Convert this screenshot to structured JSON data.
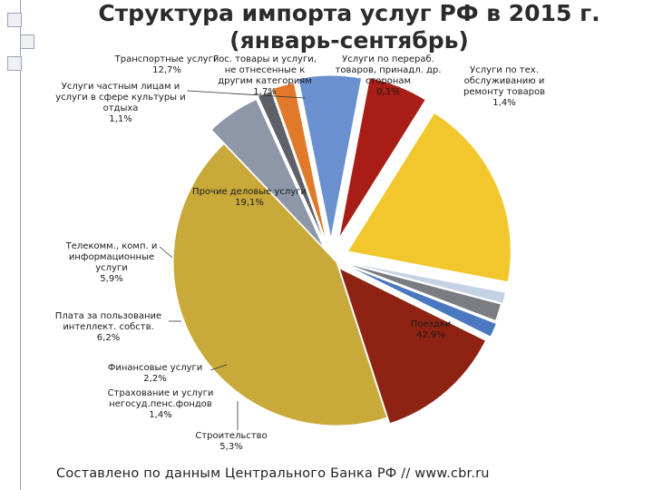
{
  "title": {
    "line1": "Структура импорта услуг РФ  в 2015 г.",
    "line2": "(январь-сентябрь)"
  },
  "source": "Составлено по данным Центрального Банка РФ // www.cbr.ru",
  "chart_data": {
    "type": "pie",
    "title": "Структура импорта услуг РФ  в 2015 г. (январь-сентябрь)",
    "unit": "%",
    "slices": [
      {
        "label": "Поездки",
        "value": 42.9,
        "value_label": "42,9%",
        "color": "#c8a93a"
      },
      {
        "label": "Строительство",
        "value": 5.3,
        "value_label": "5,3%",
        "color": "#8d97a8"
      },
      {
        "label": "Страхование и услуги негосуд.пенс.фондов",
        "value": 1.4,
        "value_label": "1,4%",
        "color": "#5e6068"
      },
      {
        "label": "Финансовые услуги",
        "value": 2.2,
        "value_label": "2,2%",
        "color": "#e07a2a"
      },
      {
        "label": "Плата за пользование интеллект. собств.",
        "value": 6.2,
        "value_label": "6,2%",
        "color": "#6a90d0"
      },
      {
        "label": "Телекомм., комп. и информационные услуги",
        "value": 5.9,
        "value_label": "5,9%",
        "color": "#a81e16"
      },
      {
        "label": "Прочие деловые услуги",
        "value": 19.1,
        "value_label": "19,1%",
        "color": "#f2c72d"
      },
      {
        "label": "Услуги частным лицам и услуги в сфере культуры и отдыха",
        "value": 1.1,
        "value_label": "1,1%",
        "color": "#c5d2e6"
      },
      {
        "label": "Гос. товары и услуги, не отнесенные к другим категориям",
        "value": 1.7,
        "value_label": "1,7%",
        "color": "#7b7b82"
      },
      {
        "label": "Услуги по перераб. товаров, принадл. др. сторонам",
        "value": 0.1,
        "value_label": "0,1%",
        "color": "#d09020"
      },
      {
        "label": "Услуги по тех. обслуживанию и ремонту товаров",
        "value": 1.4,
        "value_label": "1,4%",
        "color": "#4a78c0"
      },
      {
        "label": "Транспортные услуги",
        "value": 12.7,
        "value_label": "12,7%",
        "color": "#8e2314"
      }
    ]
  }
}
